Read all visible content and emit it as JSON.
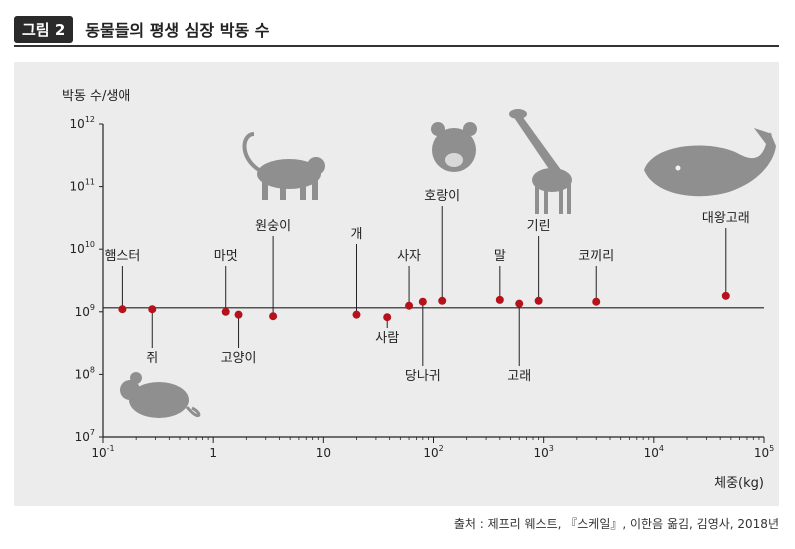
{
  "figure": {
    "badge": "그림 2",
    "title": "동물들의 평생 심장 박동 수",
    "source": "출처 : 제프리 웨스트, 『스케일』, 이한음 옮김, 김영사, 2018년"
  },
  "colors": {
    "marker": "#b5121b",
    "panel": "#ececec",
    "silhouette": "#8f8f8f",
    "axis": "#222222"
  },
  "icons": [
    "mouse-icon",
    "monkey-icon",
    "tiger-icon",
    "giraffe-icon",
    "whale-icon"
  ],
  "chart_data": {
    "type": "scatter",
    "ylabel": "박동 수/생애",
    "xlabel": "체중(kg)",
    "xscale": "log",
    "yscale": "log",
    "xlim": [
      0.1,
      100000
    ],
    "ylim": [
      10000000,
      1000000000000
    ],
    "x_ticks": [
      {
        "base": "10",
        "exp": "-1"
      },
      {
        "base": "1",
        "exp": ""
      },
      {
        "base": "10",
        "exp": ""
      },
      {
        "base": "10",
        "exp": "2"
      },
      {
        "base": "10",
        "exp": "3"
      },
      {
        "base": "10",
        "exp": "4"
      },
      {
        "base": "10",
        "exp": "5"
      }
    ],
    "y_ticks": [
      {
        "base": "10",
        "exp": "7"
      },
      {
        "base": "10",
        "exp": "8"
      },
      {
        "base": "10",
        "exp": "9"
      },
      {
        "base": "10",
        "exp": "10"
      },
      {
        "base": "10",
        "exp": "11"
      },
      {
        "base": "10",
        "exp": "12"
      }
    ],
    "reference_line_y": 1000000000,
    "points": [
      {
        "label": "햄스터",
        "x": 0.15,
        "y": 1100000000,
        "label_pos": "above"
      },
      {
        "label": "쥐",
        "x": 0.28,
        "y": 1100000000,
        "label_pos": "below"
      },
      {
        "label": "마멋",
        "x": 1.3,
        "y": 1000000000,
        "label_pos": "above"
      },
      {
        "label": "고양이",
        "x": 1.7,
        "y": 900000000,
        "label_pos": "below"
      },
      {
        "label": "원숭이",
        "x": 3.5,
        "y": 850000000,
        "label_pos": "above"
      },
      {
        "label": "개",
        "x": 20,
        "y": 900000000,
        "label_pos": "above"
      },
      {
        "label": "사람",
        "x": 38,
        "y": 820000000,
        "label_pos": "below"
      },
      {
        "label": "사자",
        "x": 60,
        "y": 1250000000,
        "label_pos": "above"
      },
      {
        "label": "당나귀",
        "x": 80,
        "y": 1450000000,
        "label_pos": "below"
      },
      {
        "label": "호랑이",
        "x": 120,
        "y": 1500000000,
        "label_pos": "above"
      },
      {
        "label": "말",
        "x": 400,
        "y": 1550000000,
        "label_pos": "above"
      },
      {
        "label": "고래",
        "x": 600,
        "y": 1350000000,
        "label_pos": "below"
      },
      {
        "label": "기린",
        "x": 900,
        "y": 1500000000,
        "label_pos": "above"
      },
      {
        "label": "코끼리",
        "x": 3000,
        "y": 1450000000,
        "label_pos": "above"
      },
      {
        "label": "대왕고래",
        "x": 45000,
        "y": 1800000000,
        "label_pos": "above"
      }
    ]
  }
}
